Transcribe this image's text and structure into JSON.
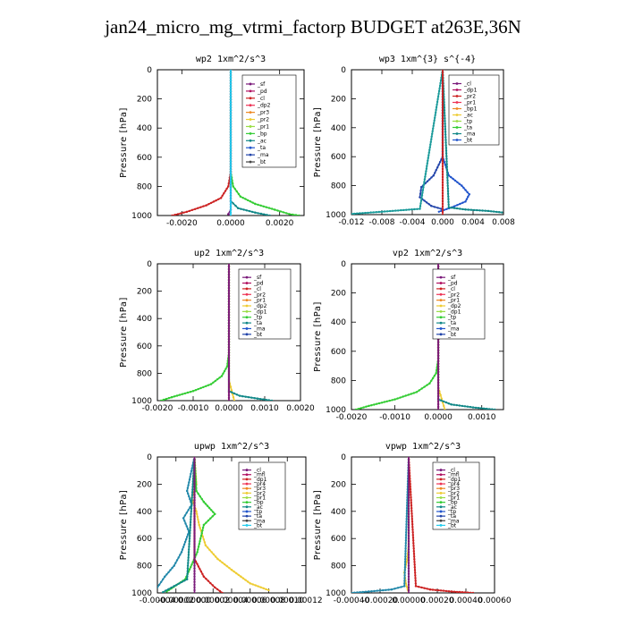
{
  "title": "jan24_micro_mg_vtrmi_factorp  BUDGET at263E,36N",
  "chart_data": [
    {
      "type": "line",
      "panel_title": "wp2  1xm^2/s^3",
      "ylabel": "Pressure [hPa]",
      "ylim": [
        1000,
        0
      ],
      "xlim": [
        -0.003,
        0.003
      ],
      "xticks": [
        -0.002,
        0,
        0.002
      ],
      "xtick_labels": [
        "-0.0020",
        "0.0000",
        "0.0020"
      ],
      "yticks": [
        0,
        200,
        400,
        600,
        800,
        1000
      ],
      "ytick_labels": [
        "0",
        "200",
        "400",
        "600",
        "800",
        "1000"
      ],
      "legend": [
        "_sf",
        "_pd",
        "_cl",
        "_dp2",
        "_pr3",
        "_pr2",
        "_pr1",
        "_bp",
        "_ac",
        "_ta",
        "_ma",
        "_bt"
      ],
      "series": [
        {
          "name": "_pr1",
          "color": "#33cc33",
          "x": [
            0,
            0,
            0.0001,
            0.0004,
            0.001,
            0.0018,
            0.0024,
            0.0028
          ],
          "y": [
            0,
            700,
            800,
            870,
            920,
            960,
            990,
            1000
          ]
        },
        {
          "name": "_dp2",
          "color": "#cc2222",
          "x": [
            0,
            0,
            -0.0001,
            -0.0004,
            -0.001,
            -0.0018,
            -0.0024
          ],
          "y": [
            0,
            700,
            800,
            880,
            930,
            975,
            1000
          ]
        },
        {
          "name": "_bp",
          "color": "#118888",
          "x": [
            0,
            0,
            0.0003,
            0.001,
            0.0016
          ],
          "y": [
            0,
            900,
            950,
            980,
            1000
          ]
        },
        {
          "name": "_pd",
          "color": "#7a1a7a",
          "x": [
            0,
            0,
            -0.0001,
            0
          ],
          "y": [
            0,
            960,
            990,
            1000
          ]
        },
        {
          "name": "_bt",
          "color": "#22ccee",
          "x": [
            0,
            0
          ],
          "y": [
            0,
            1000
          ]
        }
      ]
    },
    {
      "type": "line",
      "panel_title": "wp3  1xm^{3} s^{-4}",
      "ylabel": "Pressure [hPa]",
      "ylim": [
        1000,
        0
      ],
      "xlim": [
        -0.012,
        0.008
      ],
      "xticks": [
        -0.012,
        -0.008,
        -0.004,
        0,
        0.004,
        0.008
      ],
      "xtick_labels": [
        "-0.012",
        "-0.008",
        "-0.004",
        "0.000",
        "0.004",
        "0.008"
      ],
      "yticks": [
        0,
        200,
        400,
        600,
        800,
        1000
      ],
      "ytick_labels": [
        "0",
        "200",
        "400",
        "600",
        "800",
        "1000"
      ],
      "legend": [
        "_cl",
        "_dp1",
        "_pr2",
        "_pr1",
        "_bp1",
        "_ac",
        "_tp",
        "_ta",
        "_ma",
        "_bt"
      ],
      "series": [
        {
          "name": "_tp",
          "color": "#2255cc",
          "x": [
            0,
            0,
            0.0008,
            0.0025,
            0.0035,
            0.003,
            0.0012,
            -0.0005
          ],
          "y": [
            0,
            600,
            730,
            800,
            860,
            910,
            950,
            980
          ]
        },
        {
          "name": "_ta",
          "color": "#2244aa",
          "x": [
            0,
            0,
            -0.0012,
            -0.0028,
            -0.003,
            -0.0015,
            -0.0002
          ],
          "y": [
            0,
            600,
            730,
            810,
            880,
            940,
            960
          ]
        },
        {
          "name": "_ac",
          "color": "#118888",
          "x": [
            0,
            0.0008,
            0.003,
            0.006,
            0.0078
          ],
          "y": [
            0,
            950,
            965,
            975,
            985
          ]
        },
        {
          "name": "_bp1",
          "color": "#1a9a9a",
          "x": [
            0,
            -0.003,
            -0.008,
            -0.012
          ],
          "y": [
            0,
            960,
            980,
            995
          ]
        },
        {
          "name": "_cl",
          "color": "#cc2222",
          "x": [
            0,
            0
          ],
          "y": [
            0,
            1000
          ]
        }
      ]
    },
    {
      "type": "line",
      "panel_title": "up2  1xm^2/s^3",
      "ylabel": "Pressure [hPa]",
      "ylim": [
        1000,
        0
      ],
      "xlim": [
        -0.002,
        0.002
      ],
      "xticks": [
        -0.002,
        -0.001,
        0,
        0.001,
        0.002
      ],
      "xtick_labels": [
        "-0.0020",
        "-0.0010",
        "0.0000",
        "0.0010",
        "0.0020"
      ],
      "yticks": [
        0,
        200,
        400,
        600,
        800,
        1000
      ],
      "ytick_labels": [
        "0",
        "200",
        "400",
        "600",
        "800",
        "1000"
      ],
      "legend": [
        "_sf",
        "_pd",
        "_cl",
        "_pr2",
        "_pr1",
        "_dp2",
        "_dp1",
        "_tp",
        "_ta",
        "_ma",
        "_bt"
      ],
      "series": [
        {
          "name": "_pr1",
          "color": "#33cc33",
          "x": [
            0,
            0,
            -5e-05,
            -0.0002,
            -0.0005,
            -0.001,
            -0.0016,
            -0.0019
          ],
          "y": [
            0,
            650,
            750,
            820,
            880,
            930,
            975,
            1000
          ]
        },
        {
          "name": "_pr2",
          "color": "#eecc33",
          "x": [
            0,
            0,
            5e-05,
            0.0001,
            0.00015
          ],
          "y": [
            0,
            850,
            900,
            950,
            1000
          ]
        },
        {
          "name": "_dp1",
          "color": "#118888",
          "x": [
            0,
            0,
            0.0003,
            0.0008,
            0.0012
          ],
          "y": [
            0,
            930,
            965,
            985,
            1000
          ]
        },
        {
          "name": "_sf",
          "color": "#cc2222",
          "x": [
            0,
            0
          ],
          "y": [
            0,
            1000
          ]
        },
        {
          "name": "_bt",
          "color": "#7a1a7a",
          "x": [
            0,
            0
          ],
          "y": [
            0,
            1000
          ]
        }
      ]
    },
    {
      "type": "line",
      "panel_title": "vp2  1xm^2/s^3",
      "ylabel": "Pressure [hPa]",
      "ylim": [
        1000,
        0
      ],
      "xlim": [
        -0.002,
        0.0015
      ],
      "xticks": [
        -0.002,
        -0.001,
        0,
        0.001
      ],
      "xtick_labels": [
        "-0.0020",
        "-0.0010",
        "0.0000",
        "0.0010"
      ],
      "yticks": [
        0,
        200,
        400,
        600,
        800,
        1000
      ],
      "ytick_labels": [
        "0",
        "200",
        "400",
        "600",
        "800",
        "1000"
      ],
      "legend": [
        "_sf",
        "_pd",
        "_cl",
        "_pr2",
        "_pr1",
        "_dp2",
        "_dp1",
        "_tp",
        "_ta",
        "_ma",
        "_bt"
      ],
      "series": [
        {
          "name": "_pr1",
          "color": "#33cc33",
          "x": [
            0,
            0,
            -5e-05,
            -0.0002,
            -0.0005,
            -0.001,
            -0.0016,
            -0.0019
          ],
          "y": [
            0,
            650,
            750,
            820,
            880,
            930,
            975,
            1000
          ]
        },
        {
          "name": "_pr2",
          "color": "#eecc33",
          "x": [
            0,
            0,
            5e-05,
            0.0001,
            0.00015
          ],
          "y": [
            0,
            850,
            900,
            950,
            1000
          ]
        },
        {
          "name": "_dp1",
          "color": "#118888",
          "x": [
            0,
            0,
            0.0003,
            0.0008,
            0.0013
          ],
          "y": [
            0,
            930,
            965,
            985,
            1000
          ]
        },
        {
          "name": "_sf",
          "color": "#cc2222",
          "x": [
            0,
            0
          ],
          "y": [
            0,
            1000
          ]
        },
        {
          "name": "_bt",
          "color": "#7a1a7a",
          "x": [
            0,
            0
          ],
          "y": [
            0,
            1000
          ]
        }
      ]
    },
    {
      "type": "line",
      "panel_title": "upwp  1xm^2/s^3",
      "ylabel": "Pressure [hPa]",
      "ylim": [
        1000,
        0
      ],
      "xlim": [
        -4e-05,
        0.00012
      ],
      "xticks": [
        -4e-05,
        -2e-05,
        0,
        2e-05,
        4e-05,
        6e-05,
        8e-05,
        0.0001,
        0.00012
      ],
      "xtick_labels": [
        "-0.00004",
        "-0.00002",
        "0.00000",
        "0.00002",
        "0.00004",
        "0.00006",
        "0.00008",
        "0.00010",
        "0.00012"
      ],
      "yticks": [
        0,
        200,
        400,
        600,
        800,
        1000
      ],
      "ytick_labels": [
        "0",
        "200",
        "400",
        "600",
        "800",
        "1000"
      ],
      "legend": [
        "_cl",
        "_mfl",
        "_dp1",
        "_pr4",
        "_pr3",
        "_pr2",
        "_pr1",
        "_bp",
        "_ac",
        "_tp",
        "_ta",
        "_ma",
        "_bt"
      ],
      "series": [
        {
          "name": "_pr2",
          "color": "#eecc33",
          "x": [
            0,
            2e-06,
            -3e-06,
            2e-06,
            5e-06,
            1.2e-05,
            2.5e-05,
            4e-05,
            5e-05,
            6e-05,
            8e-05
          ],
          "y": [
            0,
            200,
            300,
            400,
            500,
            650,
            750,
            830,
            880,
            930,
            980
          ]
        },
        {
          "name": "_pr1",
          "color": "#33cc33",
          "x": [
            0,
            2e-06,
            1e-05,
            2.2e-05,
            1e-05,
            3e-06,
            -1e-05,
            -3e-05
          ],
          "y": [
            0,
            250,
            330,
            420,
            500,
            700,
            900,
            990
          ]
        },
        {
          "name": "_ta",
          "color": "#2288aa",
          "x": [
            0,
            -8e-06,
            -3e-06,
            -1.2e-05,
            -6e-06,
            -1.4e-05,
            -2.2e-05,
            -3.2e-05,
            -4e-05
          ],
          "y": [
            0,
            250,
            350,
            450,
            550,
            700,
            800,
            880,
            960
          ]
        },
        {
          "name": "_ac",
          "color": "#118888",
          "x": [
            0,
            -8e-06,
            -2.2e-05,
            -3.4e-05
          ],
          "y": [
            0,
            900,
            950,
            995
          ]
        },
        {
          "name": "_dp1",
          "color": "#cc2222",
          "x": [
            0,
            0,
            1e-05,
            2.2e-05,
            3e-05
          ],
          "y": [
            0,
            750,
            880,
            960,
            1000
          ]
        },
        {
          "name": "_bt",
          "color": "#7a1a7a",
          "x": [
            0,
            0
          ],
          "y": [
            0,
            1000
          ]
        }
      ]
    },
    {
      "type": "line",
      "panel_title": "vpwp  1xm^2/s^3",
      "ylabel": "Pressure [hPa]",
      "ylim": [
        1000,
        0
      ],
      "xlim": [
        -0.0004,
        0.0006
      ],
      "xticks": [
        -0.0004,
        -0.0002,
        0,
        0.0002,
        0.0004,
        0.0006
      ],
      "xtick_labels": [
        "-0.00040",
        "-0.00020",
        "0.00000",
        "0.00020",
        "0.00040",
        "0.00060"
      ],
      "yticks": [
        0,
        200,
        400,
        600,
        800,
        1000
      ],
      "ytick_labels": [
        "0",
        "200",
        "400",
        "600",
        "800",
        "1000"
      ],
      "legend": [
        "_cl",
        "_mfl",
        "_dp1",
        "_pr4",
        "_pr3",
        "_pr2",
        "_pr1",
        "_bp",
        "_ac",
        "_tp",
        "_ta",
        "_ma",
        "_bt"
      ],
      "series": [
        {
          "name": "_pr2",
          "color": "#eecc33",
          "x": [
            0,
            0,
            -1e-05,
            -3e-05,
            -2e-05,
            0
          ],
          "y": [
            0,
            650,
            750,
            850,
            930,
            1000
          ]
        },
        {
          "name": "_ta",
          "color": "#2288aa",
          "x": [
            0,
            -3e-05,
            -0.00012,
            -0.00028,
            -0.0004
          ],
          "y": [
            0,
            950,
            975,
            990,
            1000
          ]
        },
        {
          "name": "_dp1",
          "color": "#cc2222",
          "x": [
            0,
            5e-05,
            0.00015,
            0.0003,
            0.00045
          ],
          "y": [
            0,
            950,
            975,
            990,
            1000
          ]
        },
        {
          "name": "_bt",
          "color": "#7a1a7a",
          "x": [
            0,
            0
          ],
          "y": [
            0,
            1000
          ]
        }
      ]
    }
  ]
}
